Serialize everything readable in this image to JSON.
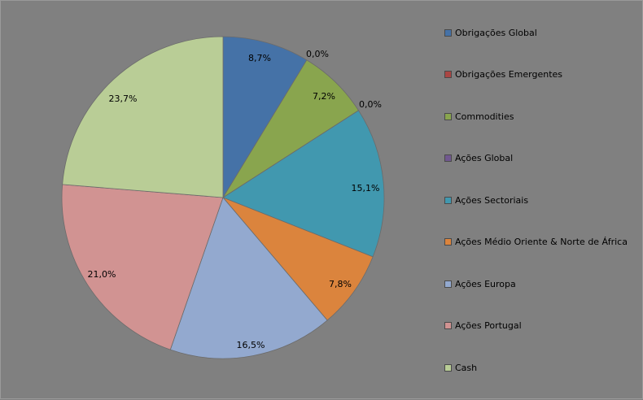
{
  "chart_data": {
    "type": "pie",
    "title": "",
    "legend_position": "right",
    "slices": [
      {
        "name": "Obrigações Global",
        "value": 8.7,
        "label": "8,7%",
        "color": "#4572A7"
      },
      {
        "name": "Obrigações Emergentes",
        "value": 0.0,
        "label": "0,0%",
        "color": "#AA4643"
      },
      {
        "name": "Commodities",
        "value": 7.2,
        "label": "7,2%",
        "color": "#89A54E"
      },
      {
        "name": "Ações Global",
        "value": 0.0,
        "label": "0,0%",
        "color": "#71588F"
      },
      {
        "name": "Ações Sectoriais",
        "value": 15.1,
        "label": "15,1%",
        "color": "#4198AF"
      },
      {
        "name": "Ações Médio Oriente & Norte de África",
        "value": 7.8,
        "label": "7,8%",
        "color": "#DB843D"
      },
      {
        "name": "Ações Europa",
        "value": 16.5,
        "label": "16,5%",
        "color": "#93A9CF"
      },
      {
        "name": "Ações Portugal",
        "value": 21.0,
        "label": "21,0%",
        "color": "#D19392"
      },
      {
        "name": "Cash",
        "value": 23.7,
        "label": "23,7%",
        "color": "#B9CD96"
      }
    ]
  }
}
